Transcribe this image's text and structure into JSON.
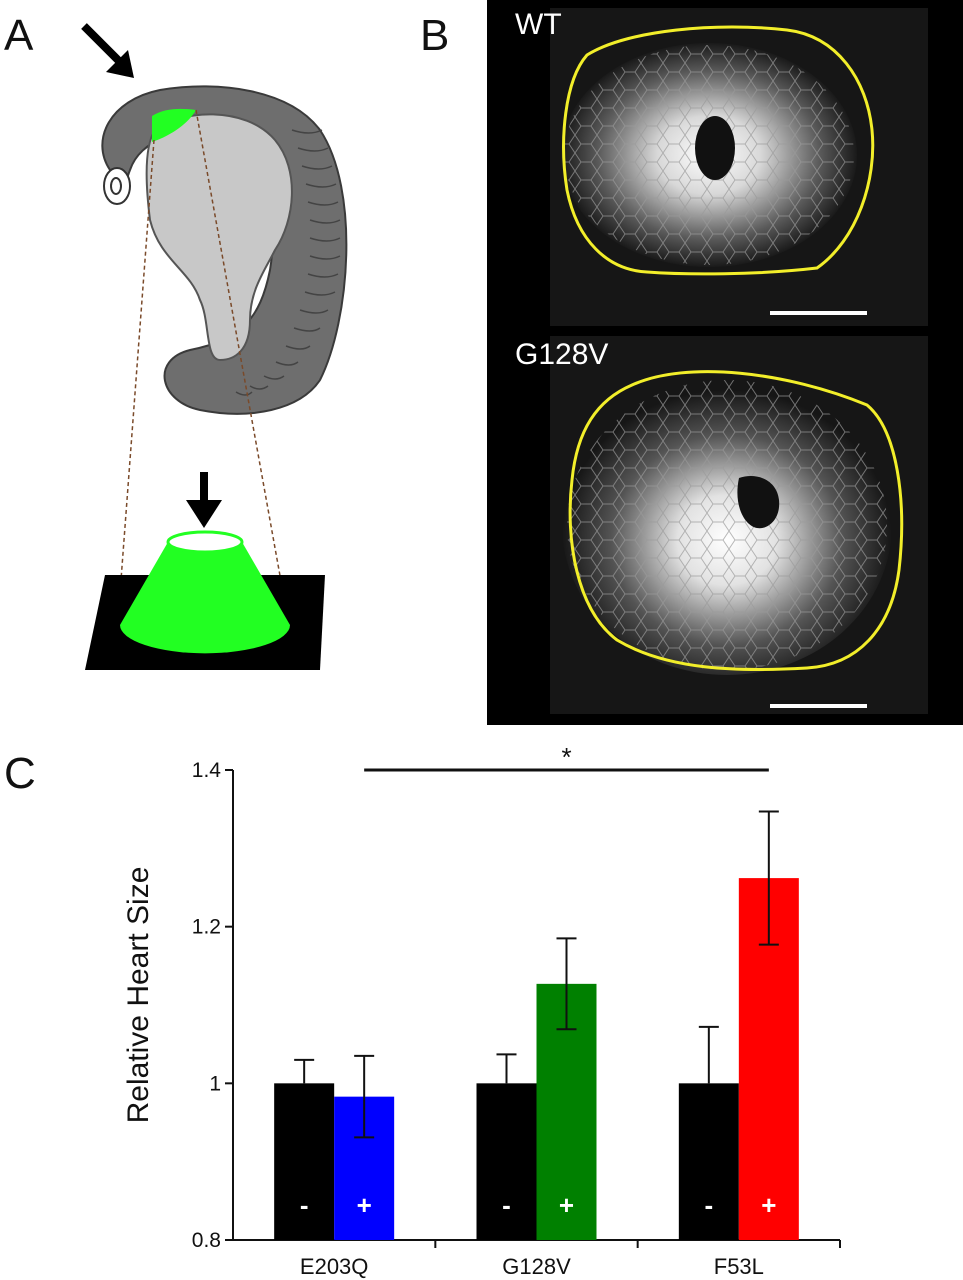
{
  "figure": {
    "panel_letters": {
      "a": "A",
      "b": "B",
      "c": "C"
    },
    "panel_b": {
      "top_label": "WT",
      "bottom_label": "G128V"
    },
    "colors": {
      "outline": "#f2ee2a",
      "gfp": "#22ff22",
      "embryo_dark": "#6e6e6e",
      "embryo_light": "#c8c8c8"
    }
  },
  "chart_data": {
    "type": "bar",
    "title": "",
    "xlabel": "",
    "ylabel": "Relative Heart Size",
    "ylim": [
      0.8,
      1.4
    ],
    "yticks": [
      "0.8",
      "1",
      "1.2",
      "1.4"
    ],
    "categories": [
      "E203Q",
      "G128V",
      "F53L"
    ],
    "series": [
      {
        "name": "-",
        "values": [
          1.0,
          1.0,
          1.0
        ],
        "errors": [
          0.03,
          0.037,
          0.072
        ],
        "colors": [
          "#000000",
          "#000000",
          "#000000"
        ]
      },
      {
        "name": "+",
        "values": [
          0.983,
          1.127,
          1.262
        ],
        "errors": [
          0.052,
          0.058,
          0.085
        ],
        "colors": [
          "#0000ff",
          "#008000",
          "#ff0000"
        ]
      }
    ],
    "significance": {
      "label": "*",
      "from_category": "E203Q",
      "to_category": "F53L"
    },
    "grid": false,
    "legend": "none"
  }
}
